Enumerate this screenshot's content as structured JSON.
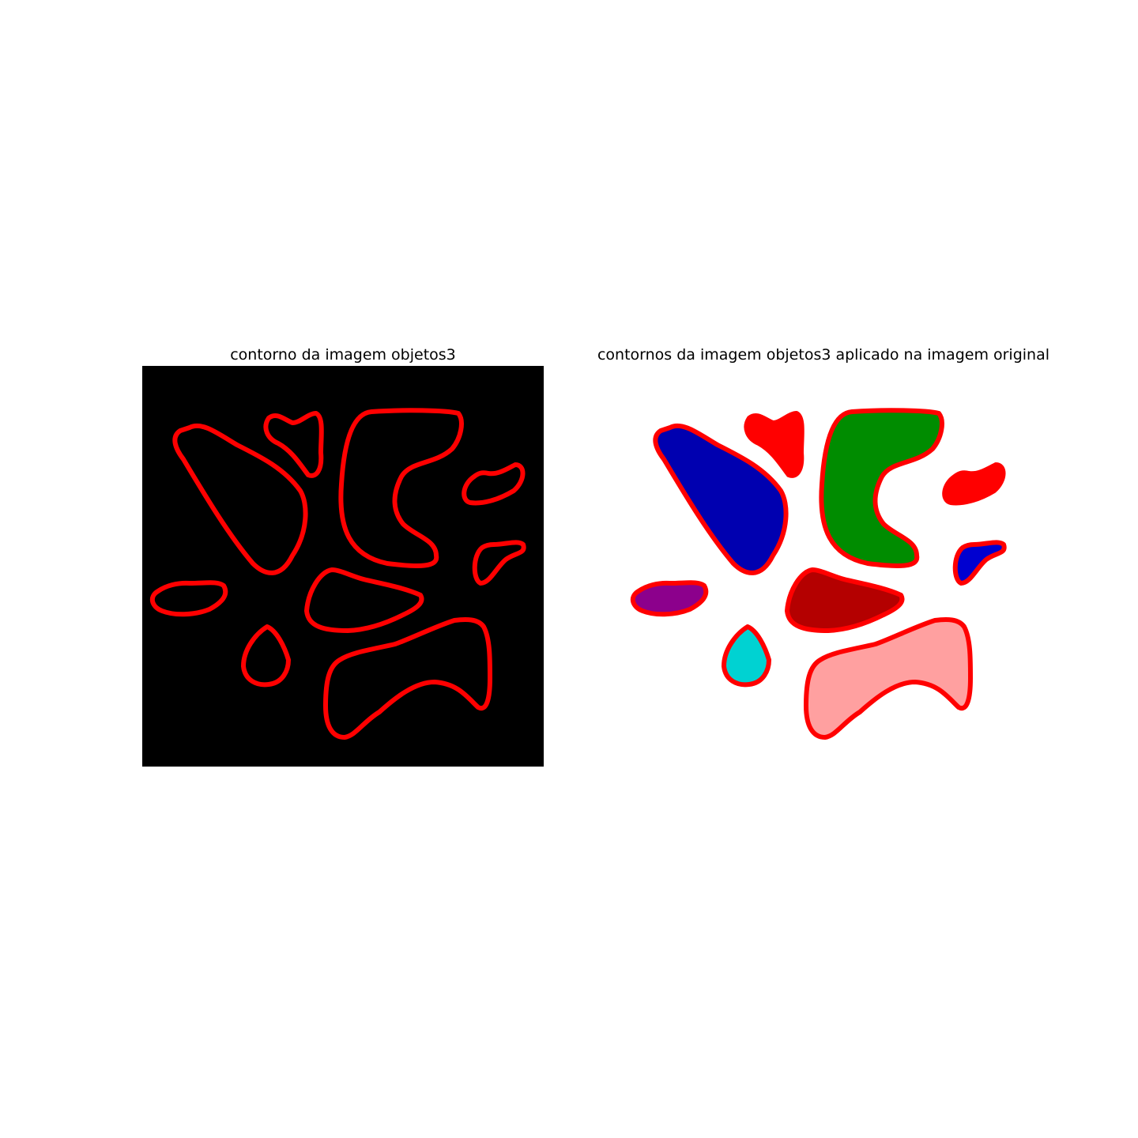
{
  "figure": {
    "panels": [
      {
        "title": "contorno da imagem objetos3",
        "background": "#000000",
        "contour_color": "#ff0000"
      },
      {
        "title": "contornos da imagem objetos3 aplicado na imagem original",
        "background": "#ffffff",
        "contour_color": "#ff0000"
      }
    ],
    "objects": [
      {
        "name": "teardrop-large",
        "fill": "#0000b0"
      },
      {
        "name": "small-heart",
        "fill": "#ff0000"
      },
      {
        "name": "c-shape",
        "fill": "#008c00"
      },
      {
        "name": "small-right-upper",
        "fill": "#ff0000"
      },
      {
        "name": "small-right-lower",
        "fill": "#0000d0"
      },
      {
        "name": "oval-left",
        "fill": "#8c008c"
      },
      {
        "name": "center-blob",
        "fill": "#b40000"
      },
      {
        "name": "drop-small",
        "fill": "#00d2d2"
      },
      {
        "name": "bean-large",
        "fill": "#ffa0a0"
      }
    ]
  }
}
